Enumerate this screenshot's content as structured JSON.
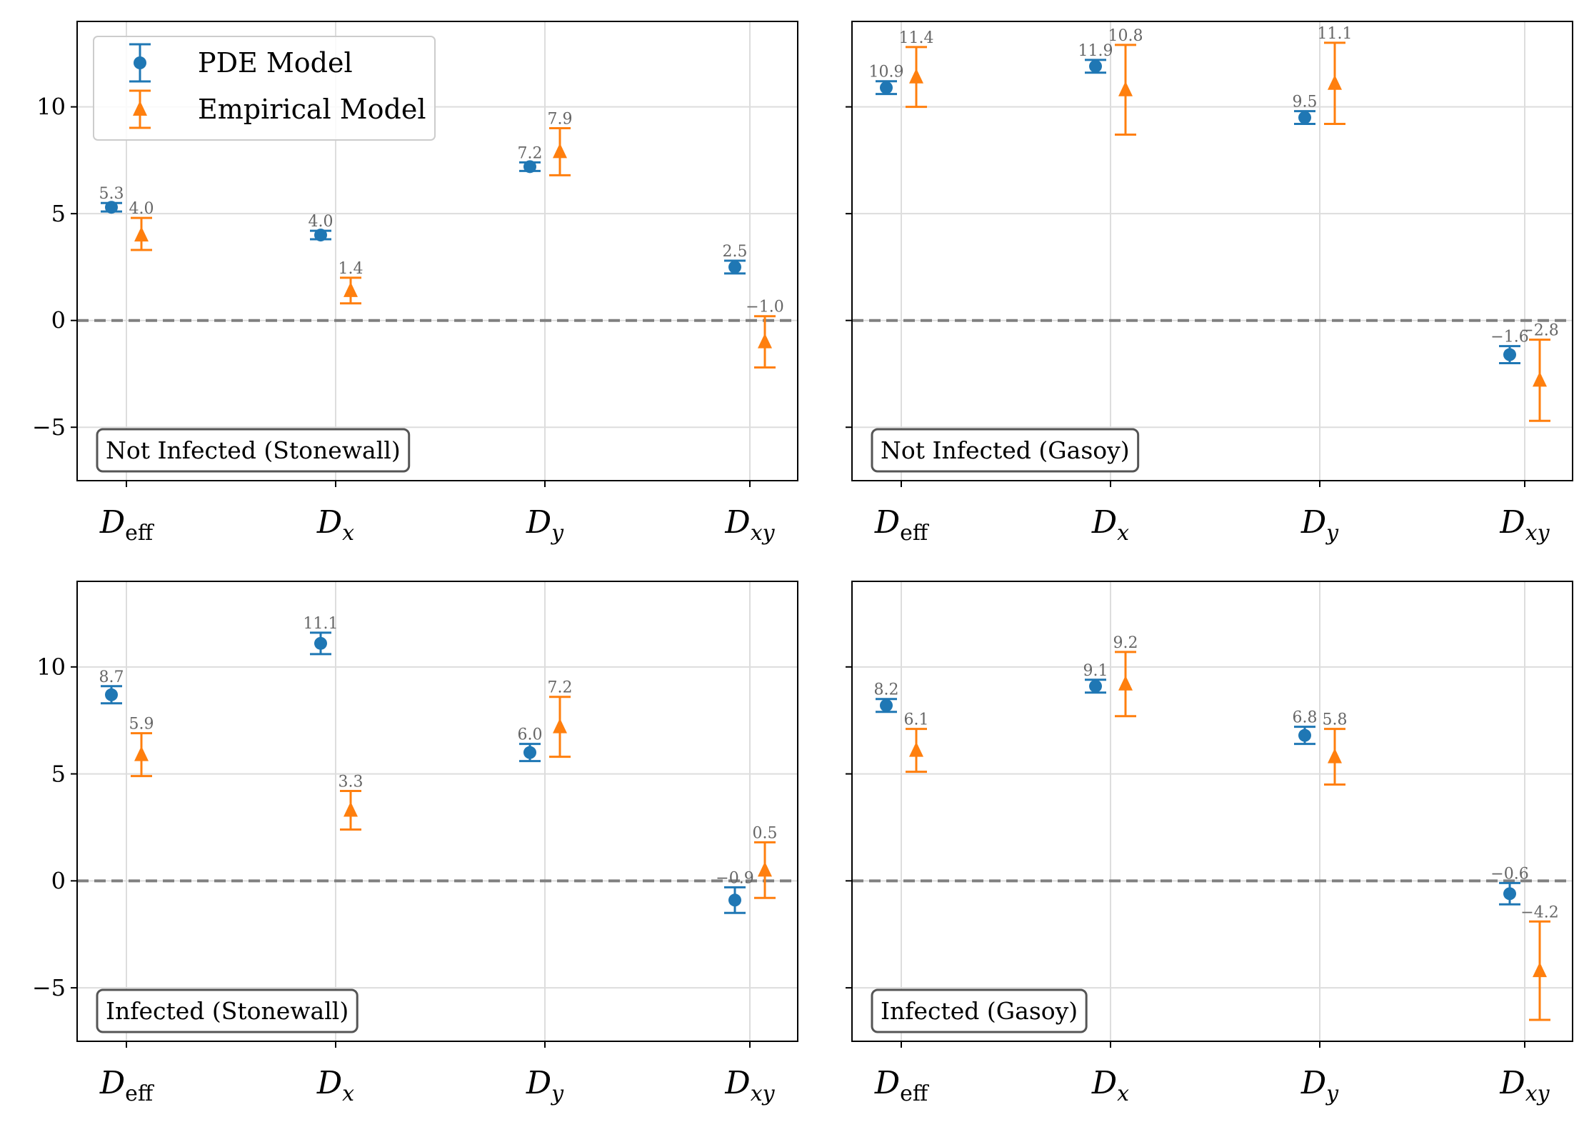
{
  "chart_data": {
    "type": "scatter",
    "description_series": [
      "PDE Model",
      "Empirical Model"
    ],
    "legend": {
      "placement": "top-left of first panel",
      "entries": [
        {
          "label": "PDE Model",
          "marker": "circle",
          "color": "#1f77b4"
        },
        {
          "label": "Empirical Model",
          "marker": "triangle",
          "color": "#ff7f0e"
        }
      ]
    },
    "categories": [
      {
        "base": "D",
        "sub": "eff",
        "sub_roman": true
      },
      {
        "base": "D",
        "sub": "x",
        "sub_roman": false
      },
      {
        "base": "D",
        "sub": "y",
        "sub_roman": false
      },
      {
        "base": "D",
        "sub": "xy",
        "sub_roman": false
      }
    ],
    "yticks": [
      {
        "value": 10,
        "label": "10"
      },
      {
        "value": 5,
        "label": "5"
      },
      {
        "value": 0,
        "label": "0"
      },
      {
        "value": -5,
        "label": "−5"
      }
    ],
    "ylim": [
      -7.5,
      14
    ],
    "reference_line": 0,
    "grid": true,
    "panels": [
      {
        "title": "Not Infected (Stonewall)",
        "show_ytick_labels": true,
        "series": [
          {
            "name": "PDE Model",
            "values": [
              5.3,
              4.0,
              7.2,
              2.5
            ],
            "lower": [
              5.1,
              3.8,
              7.0,
              2.2
            ],
            "upper": [
              5.5,
              4.2,
              7.4,
              2.8
            ],
            "labels": [
              "5.3",
              "4.0",
              "7.2",
              "2.5"
            ]
          },
          {
            "name": "Empirical Model",
            "values": [
              4.0,
              1.4,
              7.9,
              -1.0
            ],
            "lower": [
              3.3,
              0.8,
              6.8,
              -2.2
            ],
            "upper": [
              4.8,
              2.0,
              9.0,
              0.2
            ],
            "labels": [
              "4.0",
              "1.4",
              "7.9",
              "−1.0"
            ]
          }
        ]
      },
      {
        "title": "Not Infected (Gasoy)",
        "show_ytick_labels": false,
        "series": [
          {
            "name": "PDE Model",
            "values": [
              10.9,
              11.9,
              9.5,
              -1.6
            ],
            "lower": [
              10.6,
              11.6,
              9.2,
              -2.0
            ],
            "upper": [
              11.2,
              12.2,
              9.8,
              -1.2
            ],
            "labels": [
              "10.9",
              "11.9",
              "9.5",
              "−1.6"
            ]
          },
          {
            "name": "Empirical Model",
            "values": [
              11.4,
              10.8,
              11.1,
              -2.8
            ],
            "lower": [
              10.0,
              8.7,
              9.2,
              -4.7
            ],
            "upper": [
              12.8,
              12.9,
              13.0,
              -0.9
            ],
            "labels": [
              "11.4",
              "10.8",
              "11.1",
              "−2.8"
            ]
          }
        ]
      },
      {
        "title": "Infected (Stonewall)",
        "show_ytick_labels": true,
        "series": [
          {
            "name": "PDE Model",
            "values": [
              8.7,
              11.1,
              6.0,
              -0.9
            ],
            "lower": [
              8.3,
              10.6,
              5.6,
              -1.5
            ],
            "upper": [
              9.1,
              11.6,
              6.4,
              -0.3
            ],
            "labels": [
              "8.7",
              "11.1",
              "6.0",
              "−0.9"
            ]
          },
          {
            "name": "Empirical Model",
            "values": [
              5.9,
              3.3,
              7.2,
              0.5
            ],
            "lower": [
              4.9,
              2.4,
              5.8,
              -0.8
            ],
            "upper": [
              6.9,
              4.2,
              8.6,
              1.8
            ],
            "labels": [
              "5.9",
              "3.3",
              "7.2",
              "0.5"
            ]
          }
        ]
      },
      {
        "title": "Infected (Gasoy)",
        "show_ytick_labels": false,
        "series": [
          {
            "name": "PDE Model",
            "values": [
              8.2,
              9.1,
              6.8,
              -0.6
            ],
            "lower": [
              7.9,
              8.8,
              6.4,
              -1.1
            ],
            "upper": [
              8.5,
              9.4,
              7.2,
              -0.1
            ],
            "labels": [
              "8.2",
              "9.1",
              "6.8",
              "−0.6"
            ]
          },
          {
            "name": "Empirical Model",
            "values": [
              6.1,
              9.2,
              5.8,
              -4.2
            ],
            "lower": [
              5.1,
              7.7,
              4.5,
              -6.5
            ],
            "upper": [
              7.1,
              10.7,
              7.1,
              -1.9
            ],
            "labels": [
              "6.1",
              "9.2",
              "5.8",
              "−4.2"
            ]
          }
        ]
      }
    ]
  },
  "colors": {
    "pde": "#1f77b4",
    "empirical": "#ff7f0e",
    "zero_line": "#808080",
    "grid": "#dddddd",
    "data_label": "#666666"
  }
}
